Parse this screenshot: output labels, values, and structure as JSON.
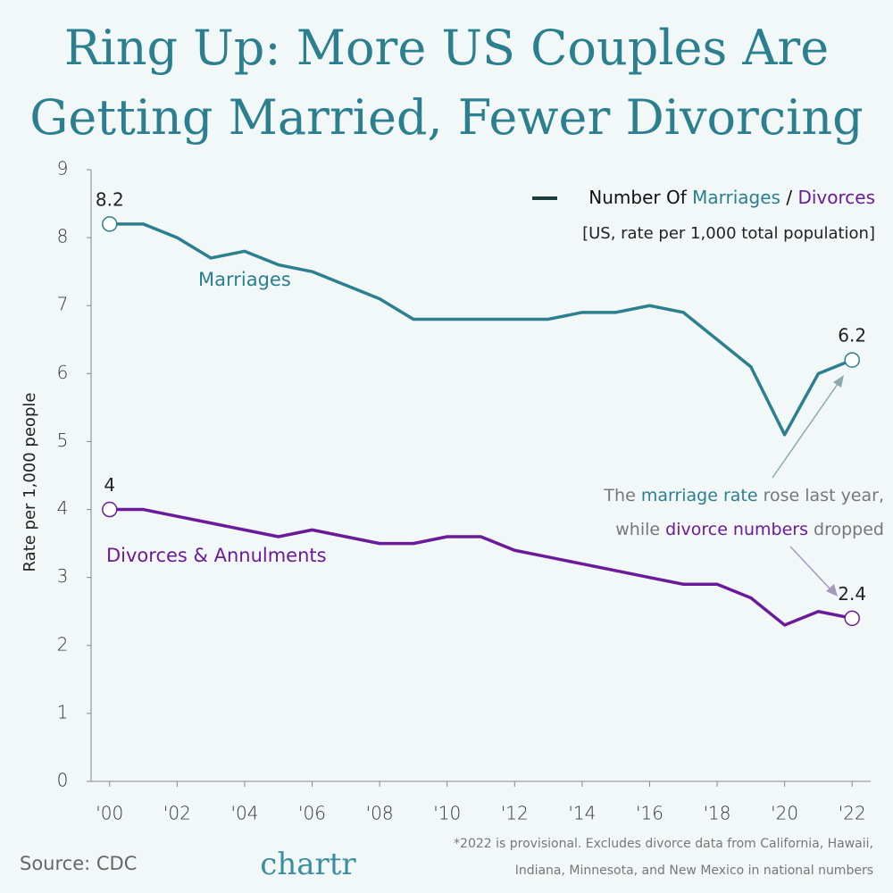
{
  "chart_data": {
    "type": "line",
    "title": [
      "Ring Up: More US Couples Are",
      "Getting Married, Fewer Divorcing"
    ],
    "legend_text": [
      "Number Of",
      "Marriages",
      "/",
      "Divorces"
    ],
    "subtitle": "[US, rate per 1,000 total population]",
    "y_label": "Rate per 1,000 people",
    "x": [
      2000,
      2001,
      2002,
      2003,
      2004,
      2005,
      2006,
      2007,
      2008,
      2009,
      2010,
      2011,
      2012,
      2013,
      2014,
      2015,
      2016,
      2017,
      2018,
      2019,
      2020,
      2021,
      2022
    ],
    "series": [
      {
        "name": "Marriages",
        "color": "#2b7f8f",
        "values": [
          8.2,
          8.2,
          8.0,
          7.7,
          7.8,
          7.6,
          7.5,
          7.3,
          7.1,
          6.8,
          6.8,
          6.8,
          6.8,
          6.8,
          6.9,
          6.9,
          7.0,
          6.9,
          6.5,
          6.1,
          5.1,
          6.0,
          6.2
        ]
      },
      {
        "name": "Divorces & Annulments",
        "color": "#6a1b9a",
        "values": [
          4.0,
          4.0,
          3.9,
          3.8,
          3.7,
          3.6,
          3.7,
          3.6,
          3.5,
          3.5,
          3.6,
          3.6,
          3.4,
          3.3,
          3.2,
          3.1,
          3.0,
          2.9,
          2.9,
          2.7,
          2.3,
          2.5,
          2.4
        ]
      }
    ],
    "xlim": [
      1999.45,
      2022.55
    ],
    "ylim": [
      0,
      9
    ],
    "xticks": [
      {
        "value": 2000,
        "label": "'00"
      },
      {
        "value": 2002,
        "label": "'02"
      },
      {
        "value": 2004,
        "label": "'04"
      },
      {
        "value": 2006,
        "label": "'06"
      },
      {
        "value": 2008,
        "label": "'08"
      },
      {
        "value": 2010,
        "label": "'10"
      },
      {
        "value": 2012,
        "label": "'12"
      },
      {
        "value": 2014,
        "label": "'14"
      },
      {
        "value": 2016,
        "label": "'16"
      },
      {
        "value": 2018,
        "label": "'18"
      },
      {
        "value": 2020,
        "label": "'20"
      },
      {
        "value": 2022,
        "label": "'22"
      }
    ],
    "yticks": [
      0,
      1,
      2,
      3,
      4,
      5,
      6,
      7,
      8,
      9
    ],
    "annotation": [
      [
        "The",
        "marriage rate",
        "rose last year,"
      ],
      [
        "while",
        "divorce numbers",
        "dropped"
      ]
    ],
    "footnote": [
      "*2022 is provisional. Excludes divorce data from California, Hawaii,",
      "Indiana, Minnesota, and New Mexico in national numbers"
    ],
    "source": "Source: CDC",
    "logo": "chartr"
  }
}
